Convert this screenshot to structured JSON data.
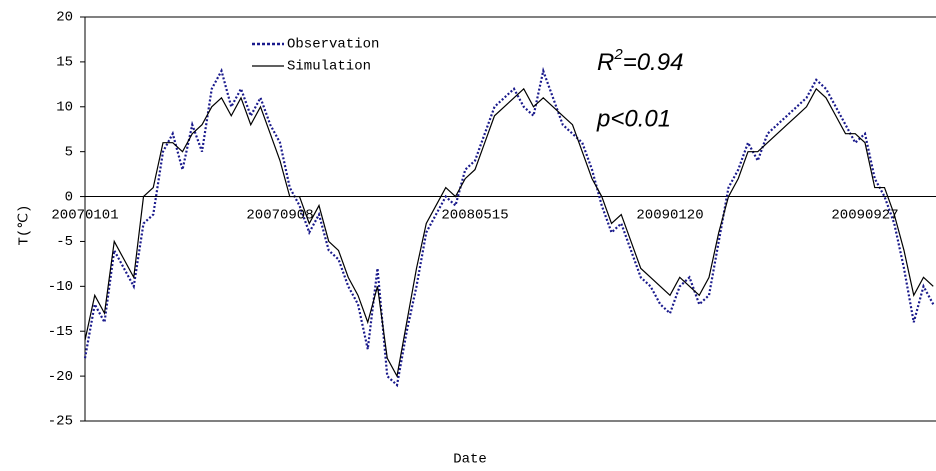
{
  "chart_data": {
    "type": "line",
    "x_label": "Date",
    "y_label": "T(℃)",
    "categories": [
      "20070101",
      null,
      null,
      null,
      null,
      null,
      null,
      null,
      null,
      null,
      null,
      null,
      null,
      null,
      null,
      null,
      null,
      null,
      null,
      null,
      "20070908",
      null,
      null,
      null,
      null,
      null,
      null,
      null,
      null,
      null,
      null,
      null,
      null,
      null,
      null,
      null,
      null,
      null,
      null,
      null,
      "20080515",
      null,
      null,
      null,
      null,
      null,
      null,
      null,
      null,
      null,
      null,
      null,
      null,
      null,
      null,
      null,
      null,
      null,
      null,
      null,
      "20090120",
      null,
      null,
      null,
      null,
      null,
      null,
      null,
      null,
      null,
      null,
      null,
      null,
      null,
      null,
      null,
      null,
      null,
      null,
      null,
      "20090927",
      null,
      null,
      null,
      null,
      null,
      null,
      null
    ],
    "series": [
      {
        "name": "Observation",
        "color": "#1a1a8c",
        "dash": true,
        "values": [
          -18,
          -12,
          -14,
          -6,
          -8,
          -10,
          -3,
          -2,
          5,
          7,
          3,
          8,
          5,
          12,
          14,
          10,
          12,
          9,
          11,
          8,
          6,
          1,
          -1,
          -4,
          -2,
          -6,
          -7,
          -10,
          -12,
          -17,
          -8,
          -20,
          -21,
          -15,
          -10,
          -4,
          -2,
          0,
          -1,
          3,
          4,
          7,
          10,
          11,
          12,
          10,
          9,
          14,
          11,
          8,
          7,
          6,
          3,
          -1,
          -4,
          -3,
          -6,
          -9,
          -10,
          -12,
          -13,
          -10,
          -9,
          -12,
          -11,
          -5,
          1,
          3,
          6,
          4,
          7,
          8,
          9,
          10,
          11,
          13,
          12,
          10,
          8,
          6,
          7,
          2,
          0,
          -3,
          -8,
          -14,
          -10,
          -12
        ]
      },
      {
        "name": "Simulation",
        "color": "#000000",
        "dash": false,
        "values": [
          -16,
          -11,
          -13,
          -5,
          -7,
          -9,
          0,
          1,
          6,
          6,
          5,
          7,
          8,
          10,
          11,
          9,
          11,
          8,
          10,
          7,
          4,
          0,
          0,
          -3,
          -1,
          -5,
          -6,
          -9,
          -11,
          -14,
          -10,
          -18,
          -20,
          -14,
          -8,
          -3,
          -1,
          1,
          0,
          2,
          3,
          6,
          9,
          10,
          11,
          12,
          10,
          11,
          10,
          9,
          8,
          5,
          2,
          0,
          -3,
          -2,
          -5,
          -8,
          -9,
          -10,
          -11,
          -9,
          -10,
          -11,
          -9,
          -4,
          0,
          2,
          5,
          5,
          6,
          7,
          8,
          9,
          10,
          12,
          11,
          9,
          7,
          7,
          6,
          1,
          1,
          -2,
          -6,
          -11,
          -9,
          -10
        ]
      }
    ],
    "ylim": [
      -25,
      20
    ],
    "yticks": [
      -25,
      -20,
      -15,
      -10,
      -5,
      0,
      5,
      10,
      15,
      20
    ],
    "annotations": [
      [
        "R",
        "2",
        "=0.94"
      ],
      [
        "p<0.01"
      ]
    ]
  }
}
